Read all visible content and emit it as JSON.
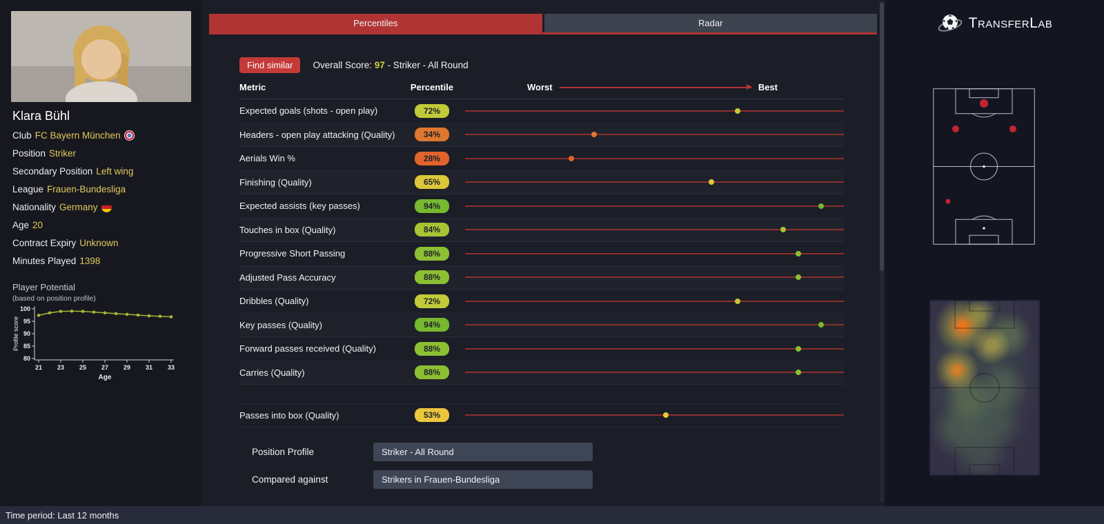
{
  "colors": {
    "accent_red": "#b13434",
    "page_bg": "#131520",
    "panel_bg": "#1b1d27",
    "value_yellow": "#e2c95a",
    "track_red": "#8e2f2c"
  },
  "logo": {
    "t1": "T",
    "mid1": "RANSFER",
    "t2": "L",
    "mid2": "AB"
  },
  "status_bar": {
    "text": "Time period: Last 12 months"
  },
  "player": {
    "name": "Klara Bühl",
    "info": [
      {
        "label": "Club",
        "value": "FC Bayern München",
        "icon": "bayern-badge",
        "link": true
      },
      {
        "label": "Position",
        "value": "Striker",
        "link": true
      },
      {
        "label": "Secondary Position",
        "value": "Left wing",
        "link": true
      },
      {
        "label": "League",
        "value": "Frauen-Bundesliga",
        "link": true
      },
      {
        "label": "Nationality",
        "value": "Germany",
        "icon": "germany-flag",
        "link": false
      },
      {
        "label": "Age",
        "value": "20",
        "link": false
      },
      {
        "label": "Contract Expiry",
        "value": "Unknown",
        "link": false
      },
      {
        "label": "Minutes Played",
        "value": "1398",
        "link": false
      }
    ],
    "potential_title": "Player Potential",
    "potential_subtitle": "(based on position profile)"
  },
  "tabs": [
    {
      "label": "Percentiles",
      "active": true
    },
    {
      "label": "Radar",
      "active": false
    }
  ],
  "toolbar": {
    "find_similar": "Find similar",
    "overall_score_label": "Overall Score:",
    "overall_score_value": "97",
    "overall_score_suffix": "- Striker - All Round"
  },
  "table": {
    "headers": {
      "metric": "Metric",
      "percentile": "Percentile",
      "worst": "Worst",
      "best": "Best"
    },
    "rows": [
      {
        "metric": "Expected goals (shots - open play)",
        "percentile": 72,
        "color": "#c2ca38"
      },
      {
        "metric": "Headers - open play attacking (Quality)",
        "percentile": 34,
        "color": "#e0772f"
      },
      {
        "metric": "Aerials Win %",
        "percentile": 28,
        "color": "#e0642c"
      },
      {
        "metric": "Finishing (Quality)",
        "percentile": 65,
        "color": "#dcc83a"
      },
      {
        "metric": "Expected assists (key passes)",
        "percentile": 94,
        "color": "#76b82f"
      },
      {
        "metric": "Touches in box (Quality)",
        "percentile": 84,
        "color": "#a6c433"
      },
      {
        "metric": "Progressive Short Passing",
        "percentile": 88,
        "color": "#8cc033"
      },
      {
        "metric": "Adjusted Pass Accuracy",
        "percentile": 88,
        "color": "#8cc033"
      },
      {
        "metric": "Dribbles (Quality)",
        "percentile": 72,
        "color": "#c2ca38"
      },
      {
        "metric": "Key passes (Quality)",
        "percentile": 94,
        "color": "#76b82f"
      },
      {
        "metric": "Forward passes received (Quality)",
        "percentile": 88,
        "color": "#8cc033"
      },
      {
        "metric": "Carries (Quality)",
        "percentile": 88,
        "color": "#8cc033"
      }
    ],
    "extra_rows": [
      {
        "metric": "Passes into box (Quality)",
        "percentile": 53,
        "color": "#ecc63d"
      }
    ]
  },
  "controls": [
    {
      "label": "Position Profile",
      "value": "Striker - All Round"
    },
    {
      "label": "Compared against",
      "value": "Strikers in Frauen-Bundesliga"
    }
  ],
  "chart_data": {
    "type": "line",
    "title": "Player Potential",
    "xlabel": "Age",
    "ylabel": "Profile score",
    "x": [
      21,
      22,
      23,
      24,
      25,
      26,
      27,
      28,
      29,
      30,
      31,
      32,
      33
    ],
    "values": [
      97.4,
      98.4,
      99.0,
      99.1,
      99.0,
      98.7,
      98.4,
      98.1,
      97.8,
      97.5,
      97.2,
      97.0,
      96.8
    ],
    "ylim": [
      80,
      100
    ],
    "yticks": [
      80,
      85,
      90,
      95,
      100
    ],
    "xticks": [
      21,
      23,
      25,
      27,
      29,
      31,
      33
    ],
    "line_color": "#a9b733",
    "grid": false,
    "legend": false
  }
}
